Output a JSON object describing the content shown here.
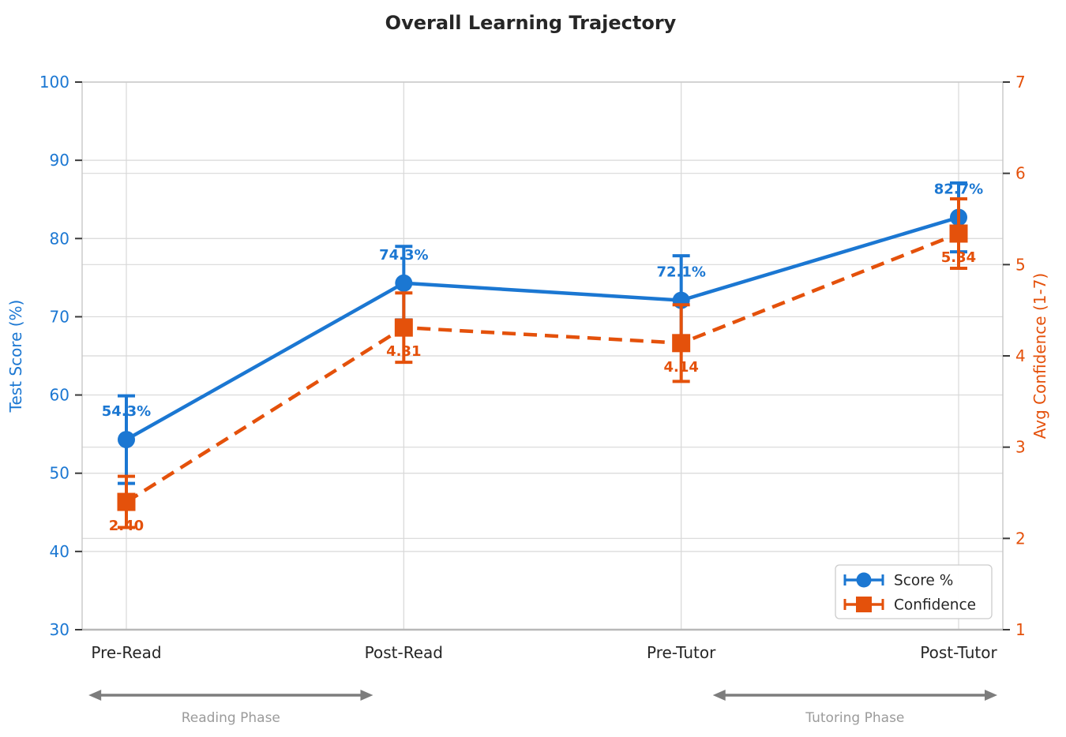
{
  "chart_data": {
    "type": "line",
    "title": "Overall Learning Trajectory",
    "categories": [
      "Pre-Read",
      "Post-Read",
      "Pre-Tutor",
      "Post-Tutor"
    ],
    "series": [
      {
        "name": "Score %",
        "axis": "left",
        "color": "#1b77d2",
        "marker": "circle",
        "line_style": "solid",
        "label_position": "above",
        "values": [
          54.3,
          74.3,
          72.1,
          82.7
        ],
        "errors": [
          5.6,
          4.7,
          5.7,
          4.4
        ],
        "point_labels": [
          "54.3%",
          "74.3%",
          "72.1%",
          "82.7%"
        ]
      },
      {
        "name": "Confidence",
        "axis": "right",
        "color": "#e4510b",
        "marker": "square",
        "line_style": "dashed",
        "label_position": "below",
        "values": [
          2.4,
          4.31,
          4.14,
          5.34
        ],
        "errors": [
          0.28,
          0.38,
          0.42,
          0.38
        ],
        "point_labels": [
          "2.40",
          "4.31",
          "4.14",
          "5.34"
        ]
      }
    ],
    "left_axis": {
      "label": "Test Score (%)",
      "min": 30,
      "max": 100,
      "ticks": [
        30,
        40,
        50,
        60,
        70,
        80,
        90,
        100
      ],
      "color": "#1b77d2"
    },
    "right_axis": {
      "label": "Avg Confidence (1-7)",
      "min": 1,
      "max": 7,
      "ticks": [
        1,
        2,
        3,
        4,
        5,
        6,
        7
      ],
      "color": "#e4510b"
    },
    "legend": {
      "position": "lower right",
      "entries": [
        "Score %",
        "Confidence"
      ]
    },
    "annotations": [
      {
        "text": "Reading Phase",
        "span": [
          "Pre-Read",
          "Post-Read"
        ]
      },
      {
        "text": "Tutoring Phase",
        "span": [
          "Pre-Tutor",
          "Post-Tutor"
        ]
      }
    ],
    "grid": true,
    "style_colors": {
      "gridline": "#d8d8d8",
      "spine": "#c8c8c8",
      "bottom_spine": "#b8b8b8",
      "tick_mark": "#3a3a3a",
      "x_label": "#262626",
      "arrow": "#7d7d7d",
      "phase_label": "#9b9b9b",
      "legend_border": "#cccccc",
      "legend_text": "#262626"
    }
  }
}
